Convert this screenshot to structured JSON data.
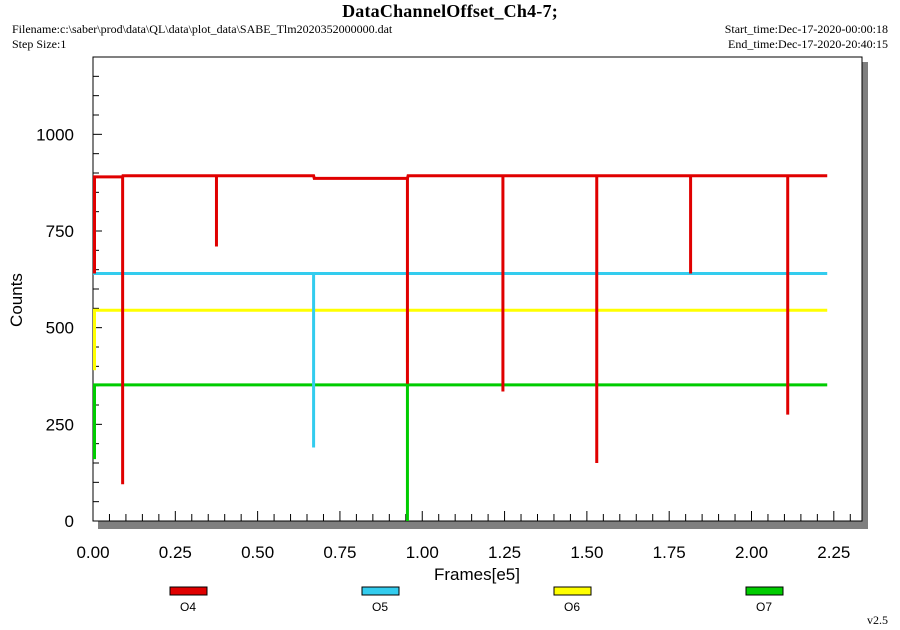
{
  "header": {
    "title": "DataChannelOffset_Ch4-7;",
    "filename": "Filename:c:\\saber\\prod\\data\\QL\\data\\plot_data\\SABE_Tlm2020352000000.dat",
    "step_size": "Step Size:1",
    "start_time": "Start_time:Dec-17-2020-00:00:18",
    "end_time": "End_time:Dec-17-2020-20:40:15"
  },
  "footer": {
    "version": "v2.5"
  },
  "colors": {
    "O4": "#e00000",
    "O5": "#33ccee",
    "O6": "#ffff00",
    "O7": "#00cc00",
    "shadow": "#7f7f7f"
  },
  "chart_data": {
    "type": "line",
    "title": "DataChannelOffset_Ch4-7;",
    "xlabel": "Frames[e5]",
    "ylabel": "Counts",
    "xlim": [
      0,
      2.35
    ],
    "ylim": [
      0,
      1200
    ],
    "x_ticks": [
      "0.00",
      "0.25",
      "0.50",
      "0.75",
      "1.00",
      "1.25",
      "1.50",
      "1.75",
      "2.00",
      "2.25"
    ],
    "y_ticks": [
      "0",
      "250",
      "500",
      "750",
      "1000"
    ],
    "legend_position": "bottom",
    "series": [
      {
        "name": "O4",
        "baseline": [
          [
            0.0,
            890
          ],
          [
            0.09,
            890
          ],
          [
            0.091,
            893
          ],
          [
            0.67,
            893
          ],
          [
            0.672,
            886
          ],
          [
            0.955,
            886
          ],
          [
            0.957,
            893
          ],
          [
            2.23,
            893
          ]
        ],
        "spikes": [
          [
            0.0,
            640
          ],
          [
            0.09,
            95
          ],
          [
            0.375,
            710
          ],
          [
            0.955,
            355
          ],
          [
            1.245,
            335
          ],
          [
            1.53,
            150
          ],
          [
            1.815,
            640
          ],
          [
            2.11,
            275
          ]
        ]
      },
      {
        "name": "O5",
        "baseline": [
          [
            0.0,
            640
          ],
          [
            2.23,
            640
          ]
        ],
        "spikes": [
          [
            0.67,
            190
          ]
        ]
      },
      {
        "name": "O6",
        "baseline": [
          [
            0.0,
            545
          ],
          [
            2.23,
            545
          ]
        ],
        "spikes": [
          [
            0.0,
            390
          ],
          [
            0.955,
            410
          ]
        ]
      },
      {
        "name": "O7",
        "baseline": [
          [
            0.0,
            352
          ],
          [
            2.23,
            352
          ]
        ],
        "spikes": [
          [
            0.0,
            160
          ],
          [
            0.955,
            0
          ]
        ]
      }
    ]
  }
}
